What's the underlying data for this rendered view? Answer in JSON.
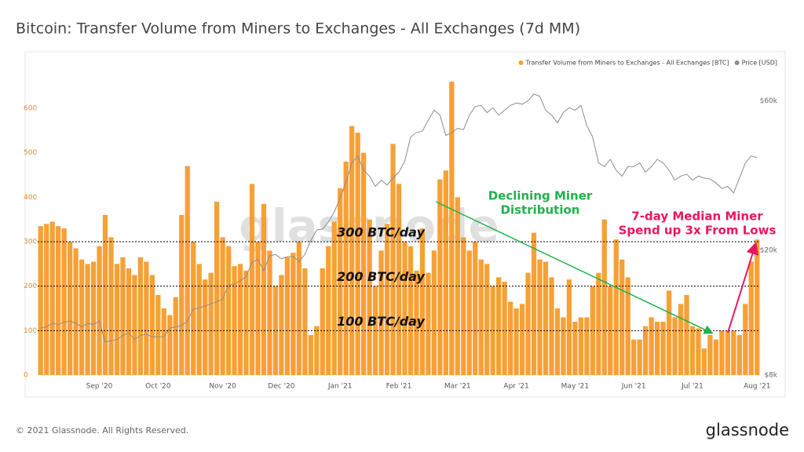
{
  "chart_data": {
    "type": "bar",
    "title": "Bitcoin: Transfer Volume from Miners to Exchanges - All Exchanges (7d MM)",
    "watermark": "glassnode",
    "footer": "© 2021 Glassnode. All Rights Reserved.",
    "brand": "glassnode",
    "categories": [
      null,
      null,
      null,
      null,
      null,
      null,
      null,
      null,
      null,
      null,
      "Sep '20",
      null,
      null,
      null,
      null,
      null,
      null,
      null,
      null,
      null,
      "Oct '20",
      null,
      null,
      null,
      null,
      null,
      null,
      null,
      null,
      null,
      null,
      "Nov '20",
      null,
      null,
      null,
      null,
      null,
      null,
      null,
      null,
      null,
      "Dec '20",
      null,
      null,
      null,
      null,
      null,
      null,
      null,
      null,
      null,
      "Jan '21",
      null,
      null,
      null,
      null,
      null,
      null,
      null,
      null,
      null,
      "Feb '21",
      null,
      null,
      null,
      null,
      null,
      null,
      null,
      null,
      null,
      "Mar '21",
      null,
      null,
      null,
      null,
      null,
      null,
      null,
      null,
      null,
      "Apr '21",
      null,
      null,
      null,
      null,
      null,
      null,
      null,
      null,
      null,
      "May '21",
      null,
      null,
      null,
      null,
      null,
      null,
      null,
      null,
      null,
      "Jun '21",
      null,
      null,
      null,
      null,
      null,
      null,
      null,
      null,
      null,
      "Jul '21",
      null,
      null,
      null,
      null,
      null,
      null,
      null,
      null,
      null,
      null,
      "Aug '21"
    ],
    "series": [
      {
        "name": "Transfer Volume from Miners to Exchanges - All Exchanges [BTC]",
        "color": "#f7a035",
        "type": "bar",
        "values": [
          335,
          340,
          345,
          335,
          330,
          300,
          285,
          260,
          250,
          255,
          290,
          360,
          310,
          250,
          265,
          240,
          225,
          265,
          255,
          225,
          180,
          150,
          135,
          175,
          360,
          470,
          300,
          250,
          215,
          230,
          390,
          310,
          290,
          245,
          250,
          235,
          430,
          300,
          385,
          280,
          200,
          225,
          265,
          275,
          300,
          240,
          90,
          110,
          240,
          290,
          345,
          420,
          480,
          560,
          545,
          500,
          350,
          200,
          280,
          340,
          520,
          430,
          300,
          290,
          235,
          330,
          230,
          280,
          440,
          460,
          660,
          400,
          310,
          280,
          300,
          260,
          250,
          200,
          220,
          210,
          165,
          150,
          160,
          230,
          320,
          260,
          255,
          220,
          150,
          130,
          215,
          120,
          130,
          130,
          200,
          230,
          350,
          200,
          305,
          260,
          220,
          80,
          80,
          110,
          130,
          120,
          120,
          190,
          130,
          160,
          180,
          110,
          105,
          60,
          90,
          80,
          100,
          100,
          100,
          90,
          160,
          255,
          305
        ]
      },
      {
        "name": "Price [USD]",
        "color": "#8c8c8c",
        "type": "line",
        "axis": "y2",
        "values": [
          11300,
          11400,
          11700,
          11600,
          11800,
          11900,
          11700,
          11400,
          11700,
          11600,
          11900,
          10200,
          10300,
          10400,
          10700,
          10900,
          10400,
          10700,
          10800,
          10600,
          10600,
          10600,
          11300,
          11400,
          11500,
          11900,
          13000,
          13100,
          13300,
          13500,
          13700,
          14000,
          15500,
          15600,
          16000,
          16500,
          18300,
          18700,
          17200,
          19200,
          19400,
          18800,
          19100,
          19100,
          18400,
          19400,
          21500,
          23200,
          23400,
          24600,
          26500,
          29300,
          33000,
          38000,
          40000,
          36000,
          34500,
          32000,
          33500,
          32300,
          34000,
          35500,
          38500,
          46000,
          47500,
          48000,
          52000,
          56000,
          54000,
          46500,
          47500,
          49000,
          48500,
          54000,
          57500,
          58000,
          55000,
          57000,
          54000,
          56000,
          58000,
          59000,
          58500,
          60000,
          63000,
          62000,
          56000,
          54000,
          51000,
          55000,
          57000,
          56000,
          58000,
          50000,
          46000,
          38000,
          37000,
          39000,
          36000,
          34500,
          37000,
          37000,
          38000,
          35500,
          37000,
          39000,
          38000,
          36000,
          33500,
          34500,
          35000,
          33500,
          34500,
          34000,
          33800,
          32800,
          31500,
          32000,
          30500,
          34000,
          38000,
          40000,
          39500
        ]
      }
    ],
    "ylim": [
      0,
      720
    ],
    "yticks": [
      0,
      100,
      200,
      300,
      400,
      500,
      600
    ],
    "y2lim": [
      8000,
      84000
    ],
    "y2scale": "log",
    "y2ticks": [
      {
        "value": 8000,
        "label": "$8k"
      },
      {
        "value": 20000,
        "label": "$20k"
      },
      {
        "value": 60000,
        "label": "$60k"
      }
    ],
    "grid": false,
    "legend": "top-right",
    "reference_lines": [
      {
        "value": 300,
        "label": "300 BTC/day"
      },
      {
        "value": 200,
        "label": "200 BTC/day"
      },
      {
        "value": 100,
        "label": "100 BTC/day"
      }
    ],
    "annotations": [
      {
        "lines": [
          "Declining Miner",
          "Distribution"
        ],
        "color": "#22b14c"
      },
      {
        "lines": [
          "7-day Median Miner",
          "Spend up 3x From Lows"
        ],
        "color": "#e8175d"
      }
    ]
  }
}
